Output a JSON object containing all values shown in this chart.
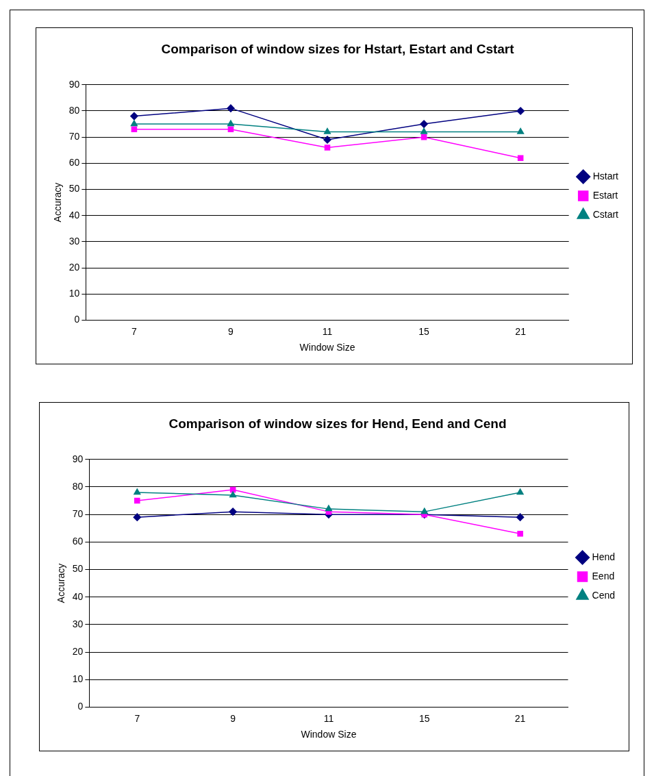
{
  "chart_data": [
    {
      "type": "line",
      "title": "Comparison of window sizes for Hstart, Estart and Cstart",
      "xlabel": "Window Size",
      "ylabel": "Accuracy",
      "categories": [
        "7",
        "9",
        "11",
        "15",
        "21"
      ],
      "series": [
        {
          "name": "Hstart",
          "color": "#000080",
          "marker": "diamond",
          "values": [
            78,
            81,
            69,
            75,
            80
          ]
        },
        {
          "name": "Estart",
          "color": "#ff00ff",
          "marker": "square",
          "values": [
            73,
            73,
            66,
            70,
            62
          ]
        },
        {
          "name": "Cstart",
          "color": "#008080",
          "marker": "triangle",
          "values": [
            75,
            75,
            72,
            72,
            72
          ]
        }
      ],
      "ylim": [
        0,
        90
      ],
      "yticks": [
        0,
        10,
        20,
        30,
        40,
        50,
        60,
        70,
        80,
        90
      ],
      "grid": "y",
      "legend": "right"
    },
    {
      "type": "line",
      "title": "Comparison of window sizes for Hend, Eend and Cend",
      "xlabel": "Window Size",
      "ylabel": "Accuracy",
      "categories": [
        "7",
        "9",
        "11",
        "15",
        "21"
      ],
      "series": [
        {
          "name": "Hend",
          "color": "#000080",
          "marker": "diamond",
          "values": [
            69,
            71,
            70,
            70,
            69
          ]
        },
        {
          "name": "Eend",
          "color": "#ff00ff",
          "marker": "square",
          "values": [
            75,
            79,
            71,
            70,
            63
          ]
        },
        {
          "name": "Cend",
          "color": "#008080",
          "marker": "triangle",
          "values": [
            78,
            77,
            72,
            71,
            78
          ]
        }
      ],
      "ylim": [
        0,
        90
      ],
      "yticks": [
        0,
        10,
        20,
        30,
        40,
        50,
        60,
        70,
        80,
        90
      ],
      "grid": "y",
      "legend": "right"
    }
  ]
}
